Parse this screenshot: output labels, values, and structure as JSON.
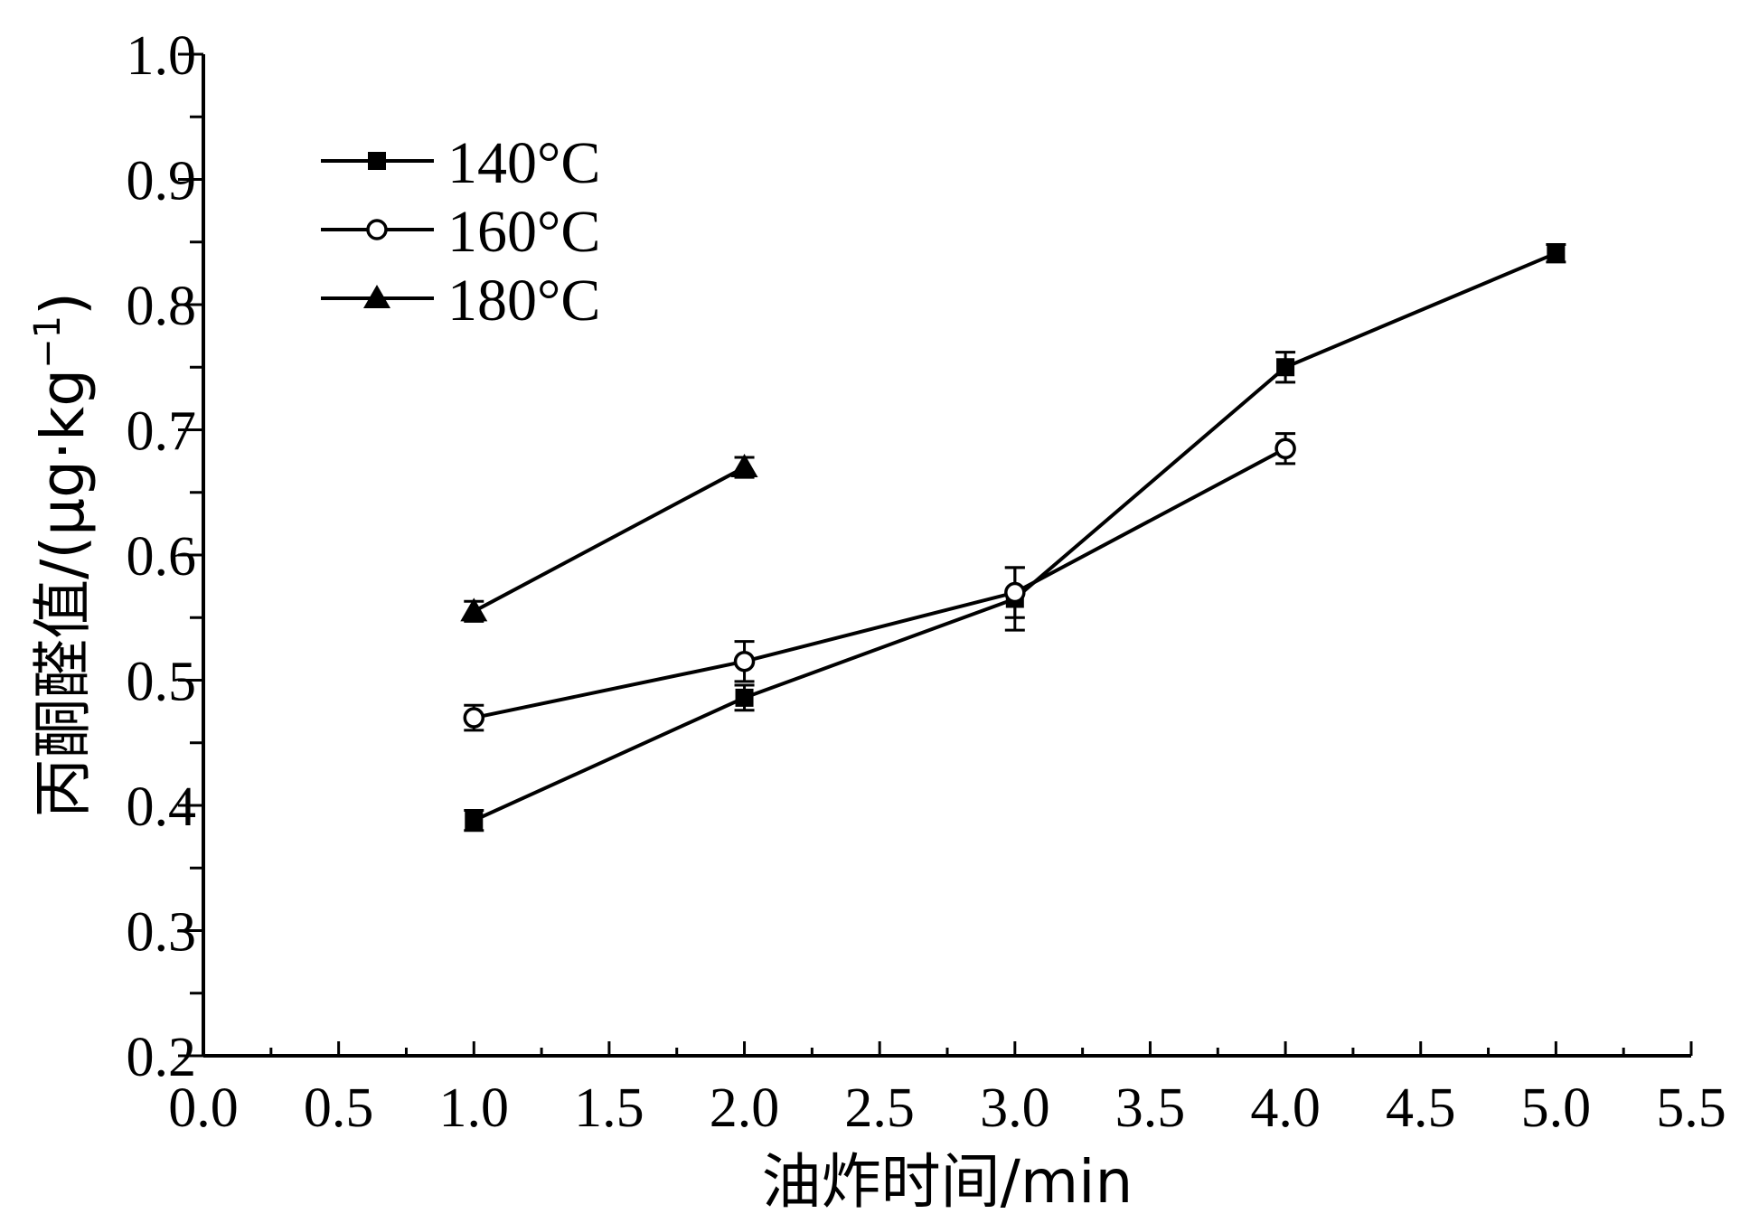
{
  "chart_data": {
    "type": "line",
    "xlabel": "油炸时间/min",
    "ylabel_main": "丙酮醛值/(μg·kg",
    "ylabel_sup": "−1",
    "ylabel_close": ")",
    "xlim": [
      0.0,
      5.5
    ],
    "ylim": [
      0.2,
      1.0
    ],
    "x_ticks": [
      "0.0",
      "0.5",
      "1.0",
      "1.5",
      "2.0",
      "2.5",
      "3.0",
      "3.5",
      "4.0",
      "4.5",
      "5.0",
      "5.5"
    ],
    "y_ticks": [
      "0.2",
      "0.3",
      "0.4",
      "0.5",
      "0.6",
      "0.7",
      "0.8",
      "0.9",
      "1.0"
    ],
    "legend_position": "top-left",
    "series": [
      {
        "name": "140°C",
        "marker": "square-filled",
        "x": [
          1,
          2,
          3,
          4,
          5
        ],
        "y": [
          0.388,
          0.486,
          0.565,
          0.75,
          0.841
        ],
        "err": [
          0.008,
          0.01,
          0.025,
          0.012,
          0.007
        ]
      },
      {
        "name": "160°C",
        "marker": "circle-open",
        "x": [
          1,
          2,
          3,
          4
        ],
        "y": [
          0.47,
          0.515,
          0.57,
          0.685
        ],
        "err": [
          0.01,
          0.016,
          0.02,
          0.012
        ]
      },
      {
        "name": "180°C",
        "marker": "triangle-filled",
        "x": [
          1,
          2
        ],
        "y": [
          0.555,
          0.67
        ],
        "err": [
          0.008,
          0.008
        ]
      }
    ]
  }
}
